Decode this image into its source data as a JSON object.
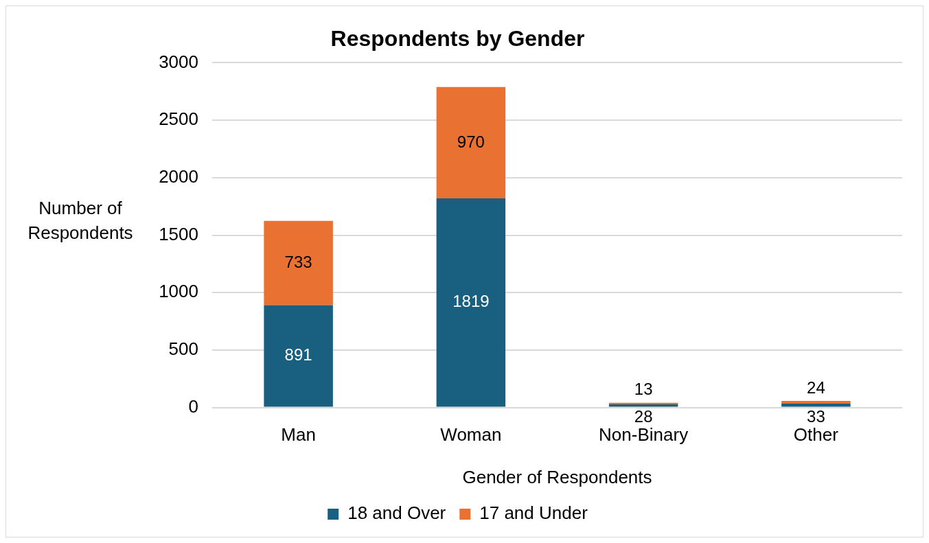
{
  "chart_data": {
    "type": "bar",
    "title": "Respondents by Gender",
    "xlabel": "Gender of Respondents",
    "ylabel": "Number of Respondents",
    "categories": [
      "Man",
      "Woman",
      "Non-Binary",
      "Other"
    ],
    "stacked": true,
    "series": [
      {
        "name": "18 and Over",
        "color": "#195f80",
        "values": [
          891,
          1819,
          28,
          33
        ]
      },
      {
        "name": "17 and Under",
        "color": "#e97132",
        "values": [
          733,
          970,
          13,
          24
        ]
      }
    ],
    "ylim": [
      0,
      3000
    ],
    "yticks": [
      0,
      500,
      1000,
      1500,
      2000,
      2500,
      3000
    ],
    "grid": "y",
    "legend": "bottom",
    "data_labels": true
  }
}
